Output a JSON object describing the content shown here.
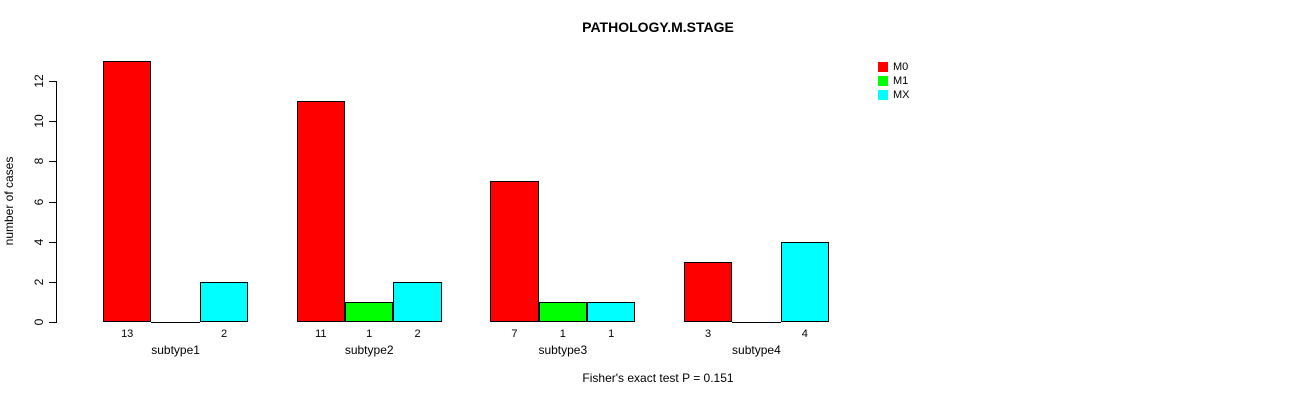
{
  "chart_data": {
    "type": "bar",
    "grouped": true,
    "title": "PATHOLOGY.M.STAGE",
    "categories": [
      "subtype1",
      "subtype2",
      "subtype3",
      "subtype4"
    ],
    "series": [
      {
        "name": "M0",
        "color": "#ff0000",
        "values": [
          13,
          11,
          7,
          3
        ]
      },
      {
        "name": "M1",
        "color": "#00ff00",
        "values": [
          0,
          1,
          1,
          0
        ]
      },
      {
        "name": "MX",
        "color": "#00ffff",
        "values": [
          2,
          2,
          1,
          4
        ]
      }
    ],
    "xlabel": "",
    "ylabel": "number of cases",
    "ylim": [
      0,
      12
    ],
    "yticks": [
      0,
      2,
      4,
      6,
      8,
      10,
      12
    ],
    "bar_border_color": "#000000",
    "value_labels": true,
    "value_labels_hide_zero": true,
    "grid": false,
    "legend": {
      "position": "top-right",
      "entries": [
        "M0",
        "M1",
        "MX"
      ]
    },
    "footnote": "Fisher's exact test P = 0.151"
  }
}
